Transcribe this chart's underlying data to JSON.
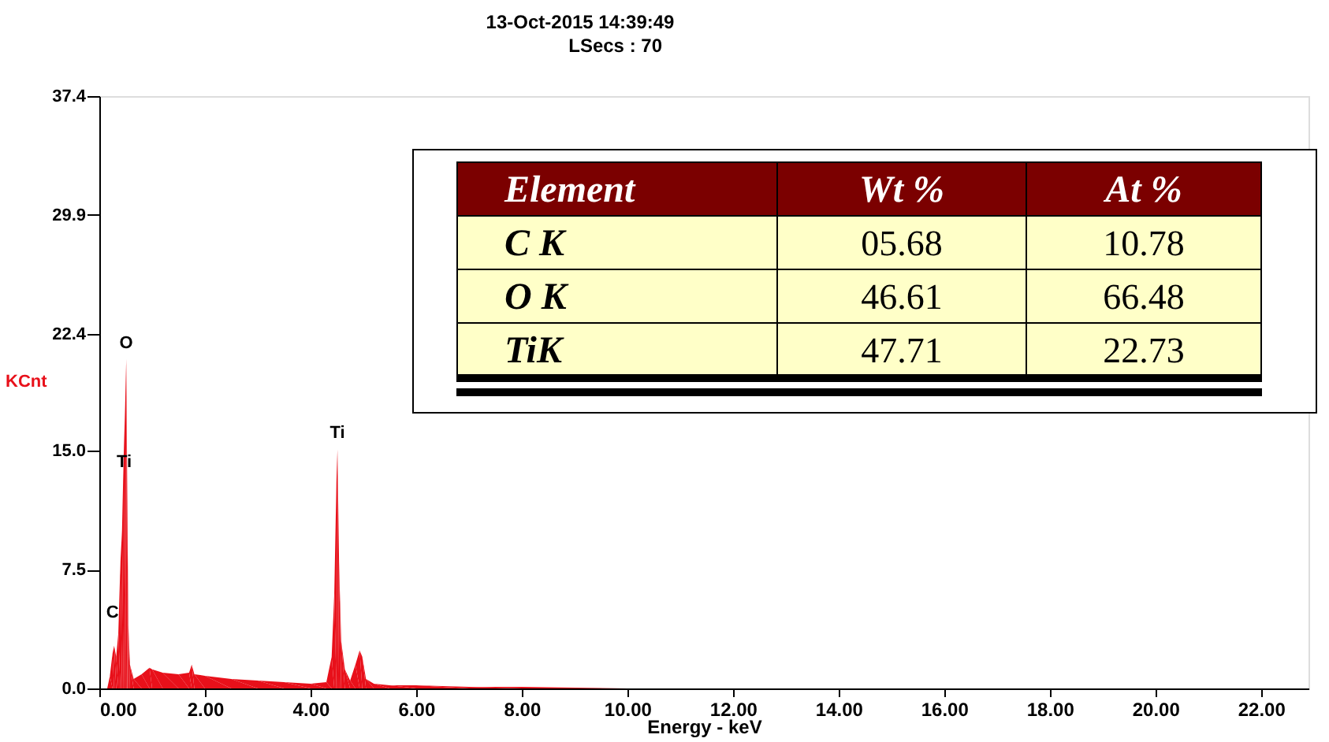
{
  "chart_data": {
    "type": "area",
    "xlabel": "Energy - keV",
    "ylabel": "KCnt",
    "x": [
      0.15,
      0.2,
      0.25,
      0.28,
      0.32,
      0.36,
      0.4,
      0.43,
      0.46,
      0.49,
      0.51,
      0.53,
      0.55,
      0.58,
      0.65,
      0.8,
      0.95,
      1.0,
      1.2,
      1.5,
      1.7,
      1.75,
      1.8,
      2.0,
      2.5,
      3.0,
      3.5,
      4.0,
      4.3,
      4.4,
      4.45,
      4.49,
      4.51,
      4.54,
      4.58,
      4.65,
      4.75,
      4.85,
      4.93,
      4.98,
      5.05,
      5.2,
      5.5,
      6.0,
      7.0,
      8.0,
      10.0,
      22.9
    ],
    "series": [
      {
        "color": "#e8101a",
        "values": [
          0,
          0.8,
          2.2,
          2.7,
          2.0,
          3.5,
          8,
          10,
          14.5,
          18,
          20.8,
          12,
          4,
          1.5,
          0.6,
          0.9,
          1.3,
          1.2,
          1.0,
          0.9,
          1.0,
          1.5,
          0.9,
          0.8,
          0.6,
          0.5,
          0.4,
          0.3,
          0.4,
          2,
          6,
          13,
          15.1,
          8,
          3,
          1.2,
          0.5,
          1.5,
          2.4,
          2.0,
          0.6,
          0.3,
          0.2,
          0.2,
          0.1,
          0.1,
          0,
          0
        ]
      }
    ],
    "xlim": [
      0,
      22.9
    ],
    "ylim": [
      0,
      37.4
    ],
    "xticks": [
      {
        "value": 0,
        "label": "0.00"
      },
      {
        "value": 2,
        "label": "2.00"
      },
      {
        "value": 4,
        "label": "4.00"
      },
      {
        "value": 6,
        "label": "6.00"
      },
      {
        "value": 8,
        "label": "8.00"
      },
      {
        "value": 10,
        "label": "10.00"
      },
      {
        "value": 12,
        "label": "12.00"
      },
      {
        "value": 14,
        "label": "14.00"
      },
      {
        "value": 16,
        "label": "16.00"
      },
      {
        "value": 18,
        "label": "18.00"
      },
      {
        "value": 20,
        "label": "20.00"
      },
      {
        "value": 22,
        "label": "22.00"
      }
    ],
    "yticks": [
      {
        "value": 0,
        "label": "0.0"
      },
      7.5,
      {
        "value": 15,
        "label": "15.0"
      },
      22.4,
      29.9,
      37.4
    ],
    "grid": false,
    "annotations": [
      "13-Oct-2015 14:39:49",
      "LSecs : 70",
      "Element",
      "Wt %",
      "At %",
      "C K",
      "05.68",
      "10.78",
      "O K",
      "46.61",
      "66.48",
      "TiK",
      "47.71",
      "22.73",
      {
        "text": "O",
        "x": 0.51,
        "y": 20.8
      },
      {
        "text": "Ti",
        "x": 0.47,
        "y": 13.3
      },
      {
        "text": "Ti",
        "x": 4.51,
        "y": 15.1
      },
      {
        "text": "C",
        "x": 0.25,
        "y": 3.8
      }
    ]
  }
}
